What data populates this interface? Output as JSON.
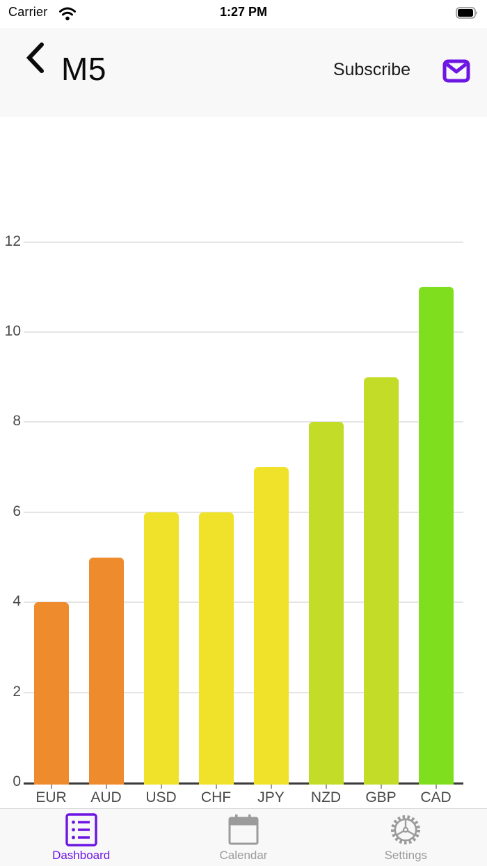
{
  "status_bar": {
    "carrier": "Carrier",
    "time": "1:27 PM",
    "icons": [
      "wifi-icon",
      "battery-icon"
    ]
  },
  "header": {
    "title": "M5",
    "subscribe_label": "Subscribe",
    "accent_color": "#6d16e4",
    "icons": [
      "back-chevron-icon",
      "mail-envelope-icon"
    ]
  },
  "chart_data": {
    "type": "bar",
    "title": "",
    "categories": [
      "EUR",
      "AUD",
      "USD",
      "CHF",
      "JPY",
      "NZD",
      "GBP",
      "CAD"
    ],
    "values": [
      4,
      5,
      6,
      6,
      7,
      8,
      9,
      11
    ],
    "bar_colors": [
      "#ee8b2d",
      "#ee8b2d",
      "#f0e22b",
      "#f0e22b",
      "#f0e22b",
      "#c3dc28",
      "#c3dc28",
      "#7fdf1e"
    ],
    "xlabel": "",
    "ylabel": "",
    "ylim": [
      0,
      12
    ],
    "yticks": [
      0,
      2,
      4,
      6,
      8,
      10,
      12
    ],
    "grid": true,
    "legend": false,
    "axis_color": "#3a3a3c",
    "grid_color": "#e5e5e5",
    "tick_label_color": "#48484a"
  },
  "tab_bar": {
    "items": [
      {
        "label": "Dashboard",
        "active": true,
        "color": "#6d16e4",
        "icon": "dashboard-list-icon"
      },
      {
        "label": "Calendar",
        "active": false,
        "color": "#9b9b9b",
        "icon": "calendar-icon"
      },
      {
        "label": "Settings",
        "active": false,
        "color": "#9b9b9b",
        "icon": "settings-gear-icon"
      }
    ]
  }
}
